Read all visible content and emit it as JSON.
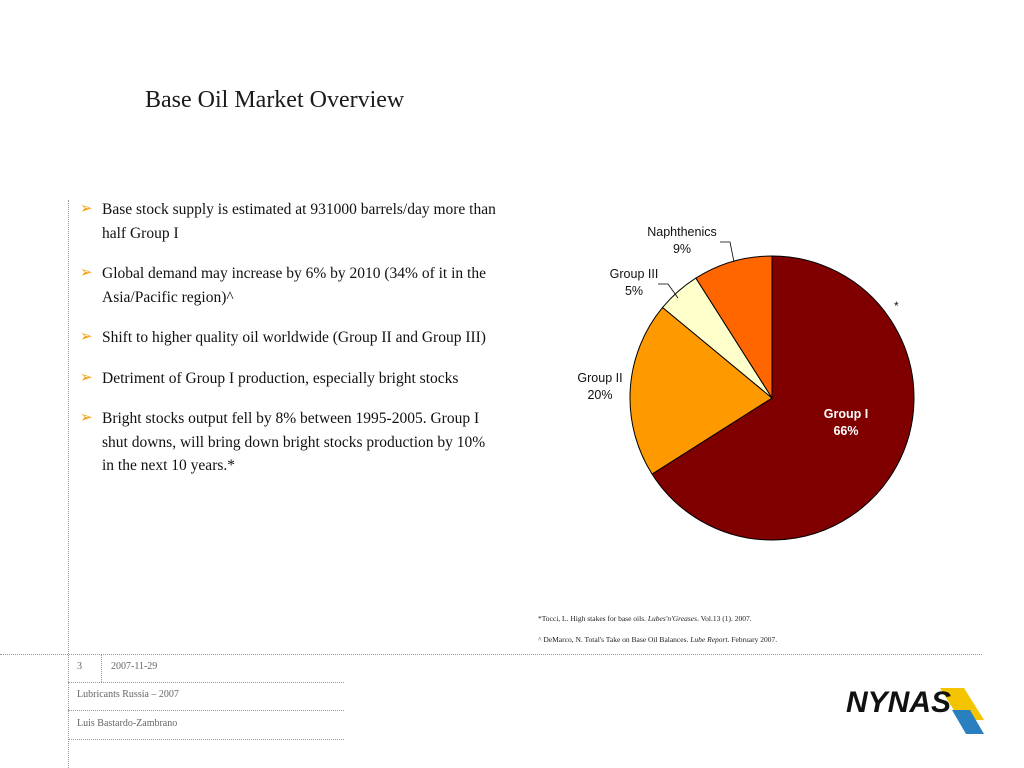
{
  "slide": {
    "title": "Base Oil Market Overview",
    "bullets": [
      "Base stock supply is estimated at 931000 barrels/day more than half Group I",
      "Global demand may increase by 6% by 2010 (34% of it in the Asia/Pacific region)^",
      "Shift to higher quality oil worldwide (Group II and Group III)",
      "Detriment of Group I production, especially bright stocks",
      "Bright stocks output fell by 8% between 1995-2005. Group I shut downs, will bring down bright stocks production by 10% in the next 10 years.*"
    ],
    "bullet_icon": "arrow-bullet-icon"
  },
  "chart_data": {
    "type": "pie",
    "slices": [
      {
        "label": "Group I",
        "value": 66,
        "value_label": "66%",
        "color": "#800000"
      },
      {
        "label": "Group II",
        "value": 20,
        "value_label": "20%",
        "color": "#FF9900"
      },
      {
        "label": "Group III",
        "value": 5,
        "value_label": "5%",
        "color": "#FFFFCC"
      },
      {
        "label": "Naphthenics",
        "value": 9,
        "value_label": "9%",
        "color": "#FF6600"
      }
    ],
    "annotation": "*"
  },
  "references": [
    {
      "prefix": "*Tocci, L. High stakes for base oils. ",
      "source": "Lubes'n'Greases",
      "suffix": ". Vol.13 (1). 2007."
    },
    {
      "prefix": "^ DeMarco, N. Total's Take on Base Oil Balances. ",
      "source": "Lube Report",
      "suffix": ". February 2007."
    }
  ],
  "footer": {
    "page_number": "3",
    "date": "2007-11-29",
    "event": "Lubricants Russia – 2007",
    "author": "Luis Bastardo-Zambrano"
  },
  "logo": {
    "text": "NYNAS",
    "text_color": "#111111",
    "accent_yellow": "#F5C400",
    "accent_blue": "#2a7fc0"
  }
}
